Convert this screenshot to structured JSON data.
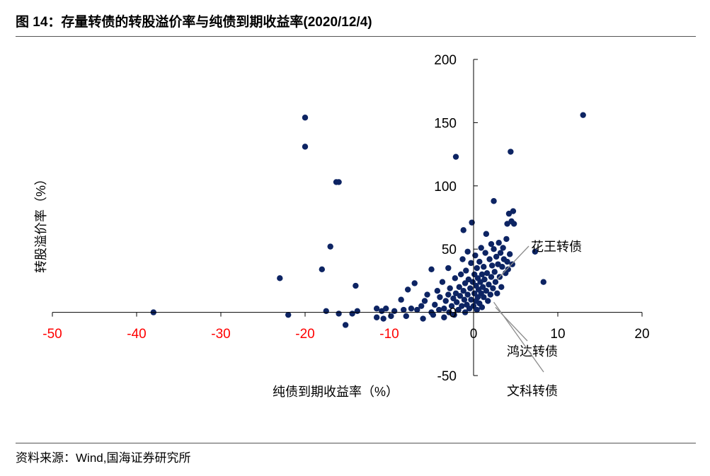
{
  "figure": {
    "title": "图 14：存量转债的转股溢价率与纯债到期收益率(2020/12/4)",
    "source": "资料来源：Wind,国海证券研究所"
  },
  "colors": {
    "point": "#0d2463",
    "negative_tick": "#ff0000",
    "axis": "#000000",
    "leader": "#8c8c8c"
  },
  "chart_data": {
    "type": "scatter",
    "xlabel": "纯债到期收益率（%）",
    "ylabel": "转股溢价率（%）",
    "xlim": [
      -50,
      20
    ],
    "ylim": [
      -50,
      200
    ],
    "x_ticks": [
      "-50",
      "-40",
      "-30",
      "-20",
      "-10",
      "0",
      "10",
      "20"
    ],
    "x_tick_values": [
      -50,
      -40,
      -30,
      -20,
      -10,
      0,
      10,
      20
    ],
    "y_ticks": [
      "200",
      "150",
      "100",
      "50",
      "0",
      "-50"
    ],
    "y_tick_values": [
      200,
      150,
      100,
      50,
      0,
      -50
    ],
    "grid": false,
    "annotations": [
      {
        "text": "花王转债",
        "x": 2.8,
        "y": 26
      },
      {
        "text": "鸿达转债",
        "x": 2.6,
        "y": 4
      },
      {
        "text": "文科转债",
        "x": 2.4,
        "y": 8
      }
    ],
    "points": [
      [
        -38,
        0
      ],
      [
        -23,
        27
      ],
      [
        -22,
        -2
      ],
      [
        -20,
        154
      ],
      [
        -20,
        131
      ],
      [
        -18,
        34
      ],
      [
        -17.5,
        1
      ],
      [
        -17,
        52
      ],
      [
        -16.3,
        103
      ],
      [
        -16,
        103
      ],
      [
        -16,
        -1
      ],
      [
        -15.2,
        -10
      ],
      [
        -14.4,
        -1
      ],
      [
        -14,
        21
      ],
      [
        -13.8,
        1
      ],
      [
        -11.5,
        3
      ],
      [
        -11.5,
        -4
      ],
      [
        -10.9,
        1
      ],
      [
        -10.7,
        -5
      ],
      [
        -10.4,
        3
      ],
      [
        -9.8,
        -3
      ],
      [
        -9.4,
        1
      ],
      [
        -8.6,
        10
      ],
      [
        -8.3,
        2
      ],
      [
        -8,
        -3
      ],
      [
        -7.8,
        18
      ],
      [
        -7.4,
        3
      ],
      [
        -7,
        23
      ],
      [
        -6.7,
        2
      ],
      [
        -6.2,
        5
      ],
      [
        -6,
        -5
      ],
      [
        -5.8,
        9
      ],
      [
        -5.5,
        14
      ],
      [
        -5,
        34
      ],
      [
        -5,
        0
      ],
      [
        -4.8,
        -2
      ],
      [
        -4.6,
        6
      ],
      [
        -4.3,
        17
      ],
      [
        -4.1,
        2
      ],
      [
        -4,
        12
      ],
      [
        -3.7,
        24
      ],
      [
        -3.5,
        3
      ],
      [
        -3.5,
        -4
      ],
      [
        -3.3,
        9
      ],
      [
        -3,
        14
      ],
      [
        -3,
        35
      ],
      [
        -2.9,
        0
      ],
      [
        -2.8,
        19
      ],
      [
        -2.6,
        5
      ],
      [
        -2.4,
        11
      ],
      [
        -2.3,
        -2
      ],
      [
        -2.2,
        27
      ],
      [
        -2.1,
        15
      ],
      [
        -2.1,
        123
      ],
      [
        -2,
        8
      ],
      [
        -1.8,
        2
      ],
      [
        -1.7,
        20
      ],
      [
        -1.6,
        13
      ],
      [
        -1.5,
        30
      ],
      [
        -1.4,
        5
      ],
      [
        -1.3,
        42
      ],
      [
        -1.2,
        17
      ],
      [
        -1.2,
        65
      ],
      [
        -1.1,
        10
      ],
      [
        -1,
        23
      ],
      [
        -1,
        0
      ],
      [
        -0.9,
        33
      ],
      [
        -0.8,
        6
      ],
      [
        -0.7,
        14
      ],
      [
        -0.7,
        48
      ],
      [
        -0.6,
        26
      ],
      [
        -0.5,
        3
      ],
      [
        -0.4,
        19
      ],
      [
        -0.3,
        10
      ],
      [
        -0.3,
        39
      ],
      [
        -0.2,
        71
      ],
      [
        -0.1,
        24
      ],
      [
        0,
        5
      ],
      [
        0.1,
        15
      ],
      [
        0.1,
        30
      ],
      [
        0.2,
        45
      ],
      [
        0.3,
        9
      ],
      [
        0.3,
        21
      ],
      [
        0.4,
        2
      ],
      [
        0.4,
        35
      ],
      [
        0.5,
        12
      ],
      [
        0.5,
        27
      ],
      [
        0.6,
        18
      ],
      [
        0.7,
        7
      ],
      [
        0.7,
        40
      ],
      [
        0.8,
        24
      ],
      [
        0.9,
        15
      ],
      [
        0.9,
        51
      ],
      [
        1,
        30
      ],
      [
        1,
        4
      ],
      [
        1.1,
        20
      ],
      [
        1.2,
        36
      ],
      [
        1.2,
        12
      ],
      [
        1.3,
        26
      ],
      [
        1.4,
        47
      ],
      [
        1.5,
        17
      ],
      [
        1.5,
        62
      ],
      [
        1.6,
        31
      ],
      [
        1.7,
        9
      ],
      [
        1.8,
        22
      ],
      [
        1.9,
        42
      ],
      [
        2,
        14
      ],
      [
        2.1,
        54
      ],
      [
        2.1,
        28
      ],
      [
        2.2,
        37
      ],
      [
        2.3,
        19
      ],
      [
        2.4,
        50
      ],
      [
        2.4,
        88
      ],
      [
        2.5,
        32
      ],
      [
        2.6,
        24
      ],
      [
        2.7,
        44
      ],
      [
        2.8,
        15
      ],
      [
        2.9,
        38
      ],
      [
        3,
        55
      ],
      [
        3.1,
        28
      ],
      [
        3.2,
        47
      ],
      [
        3.3,
        20
      ],
      [
        3.4,
        36
      ],
      [
        3.5,
        51
      ],
      [
        3.6,
        42
      ],
      [
        3.8,
        31
      ],
      [
        3.9,
        58
      ],
      [
        4,
        40
      ],
      [
        4,
        70
      ],
      [
        4.1,
        34
      ],
      [
        4.2,
        78
      ],
      [
        4.3,
        46
      ],
      [
        4.4,
        127
      ],
      [
        4.5,
        72
      ],
      [
        4.6,
        38
      ],
      [
        4.7,
        80
      ],
      [
        4.8,
        70
      ],
      [
        7.3,
        48
      ],
      [
        8.3,
        24
      ],
      [
        13,
        156
      ]
    ]
  }
}
